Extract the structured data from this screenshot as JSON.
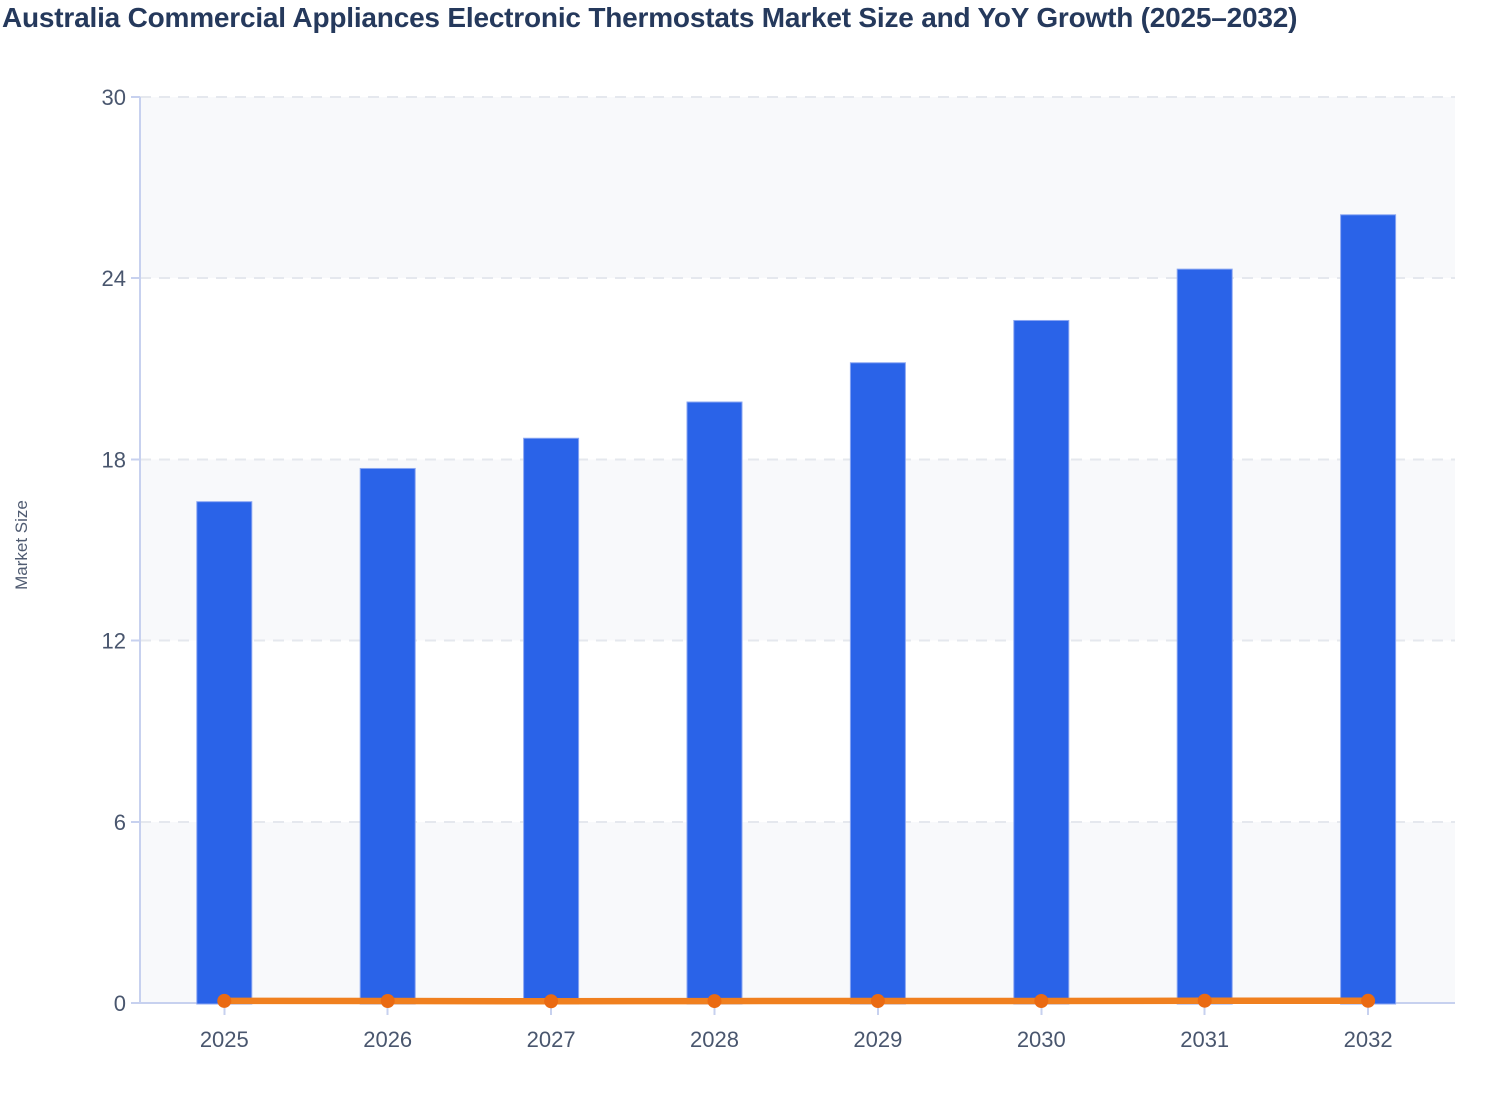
{
  "chart_data": {
    "type": "bar",
    "title": "Australia Commercial Appliances Electronic Thermostats Market Size and YoY Growth (2025–2032)",
    "ylabel": "Market Size",
    "xlabel": "",
    "categories": [
      "2025",
      "2026",
      "2027",
      "2028",
      "2029",
      "2030",
      "2031",
      "2032"
    ],
    "series": [
      {
        "name": "Market Size",
        "type": "bar",
        "color": "#2a63e8",
        "edge_color": "#8aa6f2",
        "values": [
          16.6,
          17.7,
          18.7,
          19.9,
          21.2,
          22.6,
          24.3,
          26.1
        ]
      },
      {
        "name": "YoY Growth",
        "type": "line",
        "color": "#f0801f",
        "marker_color": "#ea6a12",
        "values": [
          0.07,
          0.066,
          0.057,
          0.064,
          0.065,
          0.066,
          0.075,
          0.074
        ],
        "note": "plotted on the same axis as Market Size, so the line hugs the zero baseline"
      }
    ],
    "ylim": [
      0,
      30
    ],
    "yticks": [
      0,
      6,
      12,
      18,
      24,
      30
    ],
    "legend_position": "none",
    "grid": "horizontal dashed",
    "gridline_color": "#e5e8ee",
    "band_fill": "#f8f9fb",
    "axis_line_color": "#c7d1ef",
    "tick_label_color": "#49566e",
    "title_color": "#25395c"
  }
}
